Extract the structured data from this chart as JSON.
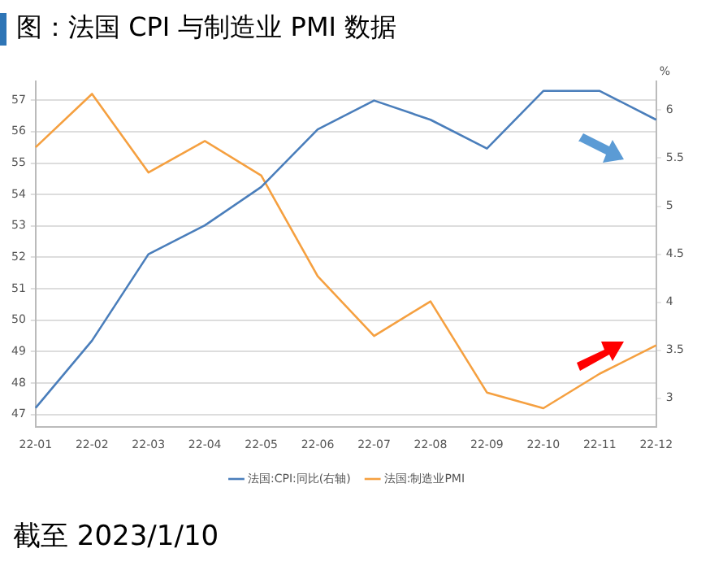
{
  "chart_data": {
    "type": "line",
    "title": "图：法国 CPI 与制造业 PMI 数据",
    "categories": [
      "22-01",
      "22-02",
      "22-03",
      "22-04",
      "22-05",
      "22-06",
      "22-07",
      "22-08",
      "22-09",
      "22-10",
      "22-11",
      "22-12"
    ],
    "series": [
      {
        "name": "法国:CPI:同比(右轴)",
        "color": "#4a7ebb",
        "axis": "y2",
        "values": [
          2.9,
          3.6,
          4.5,
          4.8,
          5.2,
          5.8,
          6.1,
          5.9,
          5.6,
          6.2,
          6.2,
          5.9
        ]
      },
      {
        "name": "法国:制造业PMI",
        "color": "#f5a040",
        "values": [
          55.5,
          57.2,
          54.7,
          55.7,
          54.6,
          51.4,
          49.5,
          50.6,
          47.7,
          47.2,
          48.3,
          49.2
        ]
      }
    ],
    "ylim": [
      46.6,
      57.6
    ],
    "yticks": [
      47,
      48,
      49,
      50,
      51,
      52,
      53,
      54,
      55,
      56,
      57
    ],
    "y2lim": [
      2.7,
      6.3
    ],
    "y2ticks": [
      3,
      3.5,
      4,
      4.5,
      5,
      5.5,
      6
    ],
    "y2label": "%",
    "grid": "y",
    "legend": "bottom",
    "marker": "none",
    "line_style": "solid",
    "annotations": [
      "截至 2023/1/10"
    ]
  }
}
